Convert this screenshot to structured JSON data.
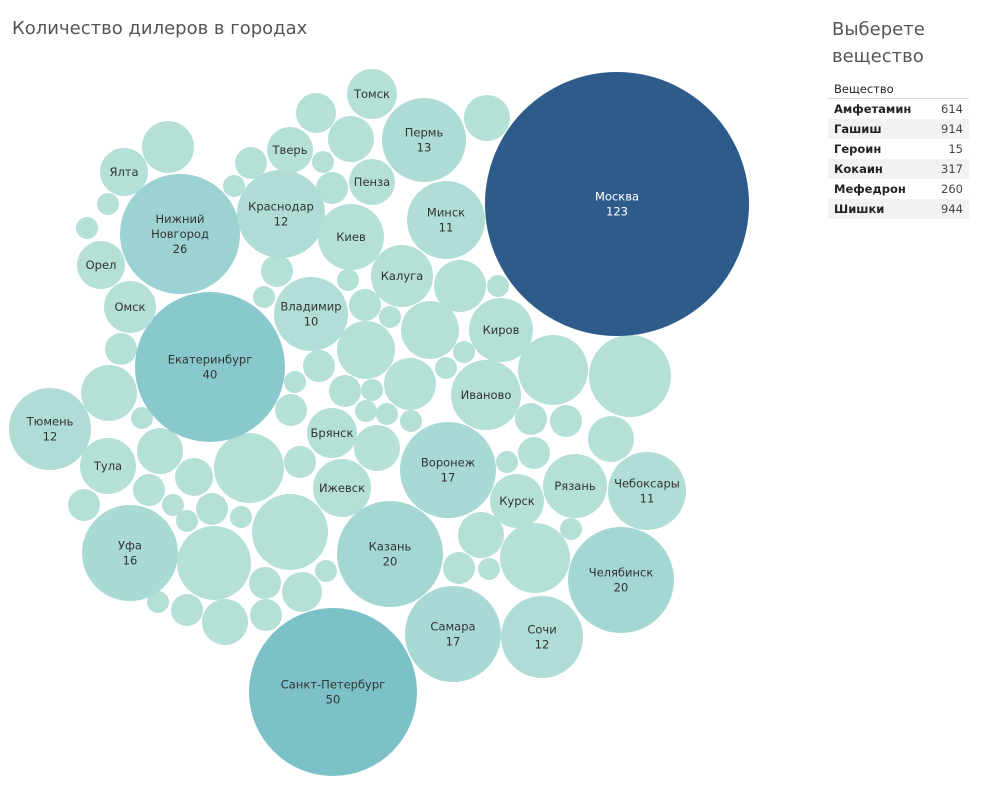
{
  "title": "Количество дилеров в городах",
  "filter": {
    "title": "Выберете вещество",
    "column_header": "Вещество",
    "rows": [
      {
        "name": "Амфетамин",
        "value": "614"
      },
      {
        "name": "Гашиш",
        "value": "914"
      },
      {
        "name": "Героин",
        "value": "15"
      },
      {
        "name": "Кокаин",
        "value": "317"
      },
      {
        "name": "Мефедрон",
        "value": "260"
      },
      {
        "name": "Шишки",
        "value": "944"
      }
    ]
  },
  "chart_data": {
    "type": "packed-bubble",
    "title": "Количество дилеров в городах",
    "measure": "Количество дилеров",
    "color_scale": {
      "low": "#b4e0d7",
      "mid": "#7cc0c8",
      "high": "#2e5c8a"
    },
    "bubbles": [
      {
        "name": "Москва",
        "value": 123
      },
      {
        "name": "Санкт-Петербург",
        "value": 50
      },
      {
        "name": "Екатеринбург",
        "value": 40
      },
      {
        "name": "Нижний\nНовгород",
        "value": 26
      },
      {
        "name": "Казань",
        "value": 20
      },
      {
        "name": "Челябинск",
        "value": 20
      },
      {
        "name": "Воронеж",
        "value": 17
      },
      {
        "name": "Самара",
        "value": 17
      },
      {
        "name": "Уфа",
        "value": 16
      },
      {
        "name": "Пермь",
        "value": 13
      },
      {
        "name": "Тюмень",
        "value": 12
      },
      {
        "name": "Краснодар",
        "value": 12
      },
      {
        "name": "Сочи",
        "value": 12
      },
      {
        "name": "Минск",
        "value": 11
      },
      {
        "name": "Чебоксары",
        "value": 11
      },
      {
        "name": "Владимир",
        "value": 10
      },
      {
        "name": "Киров",
        "value": null
      },
      {
        "name": "Иваново",
        "value": null
      },
      {
        "name": "Рязань",
        "value": null
      },
      {
        "name": "Курск",
        "value": null
      },
      {
        "name": "Ижевск",
        "value": null
      },
      {
        "name": "Брянск",
        "value": null
      },
      {
        "name": "Калуга",
        "value": null
      },
      {
        "name": "Киев",
        "value": null
      },
      {
        "name": "Пенза",
        "value": null
      },
      {
        "name": "Тверь",
        "value": null
      },
      {
        "name": "Томск",
        "value": null
      },
      {
        "name": "Ялта",
        "value": null
      },
      {
        "name": "Орел",
        "value": null
      },
      {
        "name": "Омск",
        "value": null
      },
      {
        "name": "Тула",
        "value": null
      }
    ]
  }
}
